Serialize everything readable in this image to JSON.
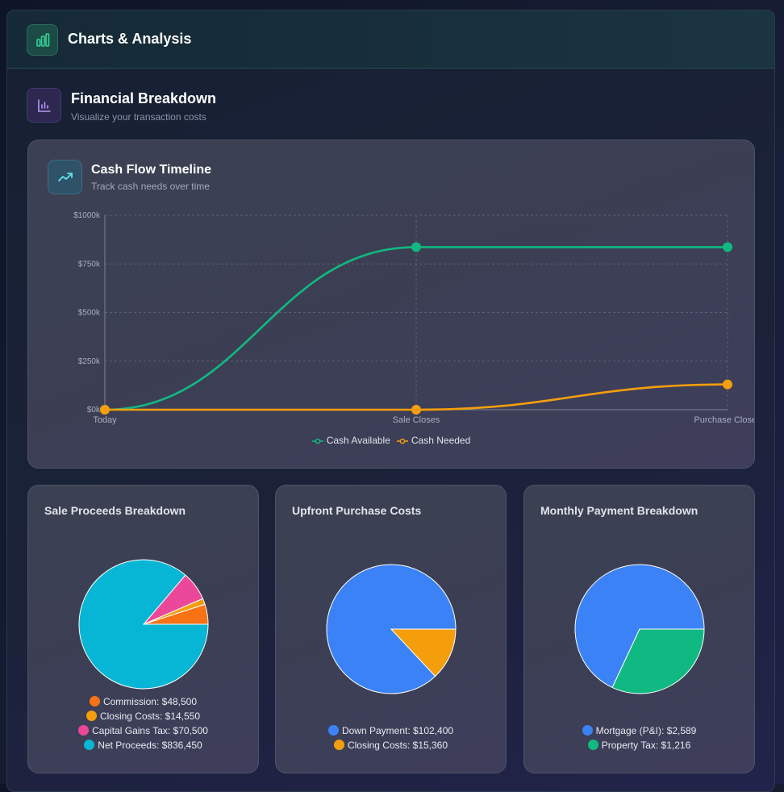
{
  "header": {
    "title": "Charts & Analysis",
    "icon": "bar-chart-icon"
  },
  "section": {
    "title": "Financial Breakdown",
    "subtitle": "Visualize your transaction costs",
    "icon": "analytics-icon"
  },
  "timeline": {
    "title": "Cash Flow Timeline",
    "subtitle": "Track cash needs over time",
    "icon": "trending-up-icon"
  },
  "pies": {
    "sale": {
      "title": "Sale Proceeds Breakdown"
    },
    "upfront": {
      "title": "Upfront Purchase Costs"
    },
    "monthly": {
      "title": "Monthly Payment Breakdown"
    }
  },
  "chart_data": [
    {
      "type": "line",
      "title": "Cash Flow Timeline",
      "categories": [
        "Today",
        "Sale Closes",
        "Purchase Closes"
      ],
      "series": [
        {
          "name": "Cash Available",
          "values": [
            0,
            836450,
            836450
          ],
          "color": "#10b981"
        },
        {
          "name": "Cash Needed",
          "values": [
            0,
            0,
            130000
          ],
          "color": "#f59e0b"
        }
      ],
      "ylim": [
        0,
        1000000
      ],
      "yticks": [
        0,
        250000,
        500000,
        750000,
        1000000
      ],
      "ytick_labels": [
        "$0k",
        "$250k",
        "$500k",
        "$750k",
        "$1000k"
      ],
      "grid": true,
      "legend": "bottom"
    },
    {
      "type": "pie",
      "title": "Sale Proceeds Breakdown",
      "slices": [
        {
          "label": "Commission",
          "value": 48500,
          "display": "$48,500",
          "color": "#f97316"
        },
        {
          "label": "Closing Costs",
          "value": 14550,
          "display": "$14,550",
          "color": "#f59e0b"
        },
        {
          "label": "Capital Gains Tax",
          "value": 70500,
          "display": "$70,500",
          "color": "#ec4899"
        },
        {
          "label": "Net Proceeds",
          "value": 836450,
          "display": "$836,450",
          "color": "#06b6d4"
        }
      ],
      "legend": "bottom"
    },
    {
      "type": "pie",
      "title": "Upfront Purchase Costs",
      "slices": [
        {
          "label": "Down Payment",
          "value": 102400,
          "display": "$102,400",
          "color": "#3b82f6"
        },
        {
          "label": "Closing Costs",
          "value": 15360,
          "display": "$15,360",
          "color": "#f59e0b"
        }
      ],
      "legend": "bottom"
    },
    {
      "type": "pie",
      "title": "Monthly Payment Breakdown",
      "slices": [
        {
          "label": "Mortgage (P&I)",
          "value": 2589,
          "display": "$2,589",
          "color": "#3b82f6"
        },
        {
          "label": "Property Tax",
          "value": 1216,
          "display": "$1,216",
          "color": "#10b981"
        }
      ],
      "legend": "bottom"
    }
  ]
}
